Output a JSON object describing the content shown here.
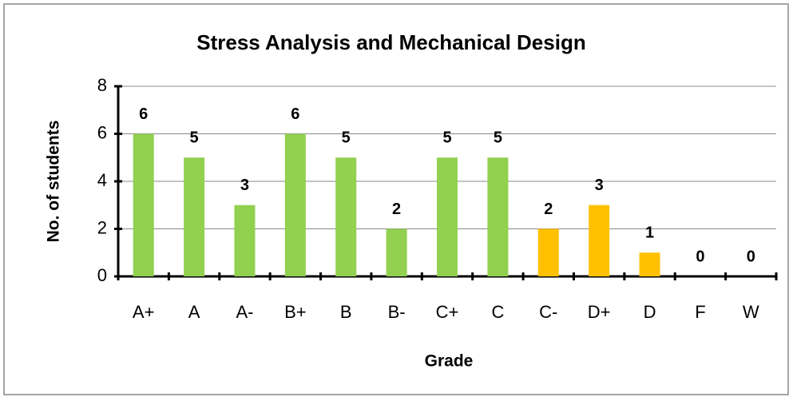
{
  "chart_data": {
    "type": "bar",
    "title": "Stress Analysis and Mechanical Design",
    "x_label": "Grade",
    "y_label": "No. of students",
    "categories": [
      "A+",
      "A",
      "A-",
      "B+",
      "B",
      "B-",
      "C+",
      "C",
      "C-",
      "D+",
      "D",
      "F",
      "W"
    ],
    "values": [
      6,
      5,
      3,
      6,
      5,
      2,
      5,
      5,
      2,
      3,
      1,
      0,
      0
    ],
    "colors": [
      "#92d050",
      "#92d050",
      "#92d050",
      "#92d050",
      "#92d050",
      "#92d050",
      "#92d050",
      "#92d050",
      "#ffc000",
      "#ffc000",
      "#ffc000",
      "#ffc000",
      "#ffc000"
    ],
    "ylim": [
      0,
      8
    ],
    "yticks": [
      0,
      2,
      4,
      6,
      8
    ],
    "grid": true,
    "data_labels": true
  }
}
